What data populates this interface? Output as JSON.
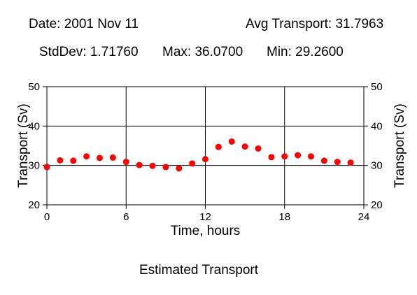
{
  "header": {
    "date": "Date: 2001 Nov 11",
    "avg": "Avg Transport: 31.7963",
    "stddev": "StdDev: 1.71760",
    "max": "Max: 36.0700",
    "min": "Min: 29.2600"
  },
  "chart_data": {
    "type": "scatter",
    "title": "Estimated Transport",
    "xlabel": "Time, hours",
    "ylabel": "Transport (Sv)",
    "ylabel_right": "Transport (Sv)",
    "xlim": [
      0,
      24
    ],
    "ylim": [
      20,
      50
    ],
    "xticks": [
      0,
      6,
      12,
      18,
      24
    ],
    "yticks": [
      20,
      30,
      40,
      50
    ],
    "xtick_labels": [
      "0",
      "6",
      "12",
      "18",
      "24"
    ],
    "ytick_labels": [
      "20",
      "30",
      "40",
      "50"
    ],
    "grid": true,
    "marker_color": "#ff0000",
    "series": [
      {
        "x": [
          0,
          1,
          2,
          3,
          4,
          5,
          6,
          7,
          8,
          9,
          10,
          11,
          12,
          13,
          14,
          15,
          16,
          17,
          18,
          19,
          20,
          21,
          22,
          23
        ],
        "y": [
          29.6,
          31.3,
          31.2,
          32.3,
          31.9,
          32.0,
          30.9,
          30.1,
          29.9,
          29.6,
          29.26,
          30.5,
          31.6,
          34.7,
          36.07,
          34.8,
          34.3,
          32.1,
          32.3,
          32.6,
          32.3,
          31.2,
          30.9,
          30.7
        ]
      }
    ]
  }
}
